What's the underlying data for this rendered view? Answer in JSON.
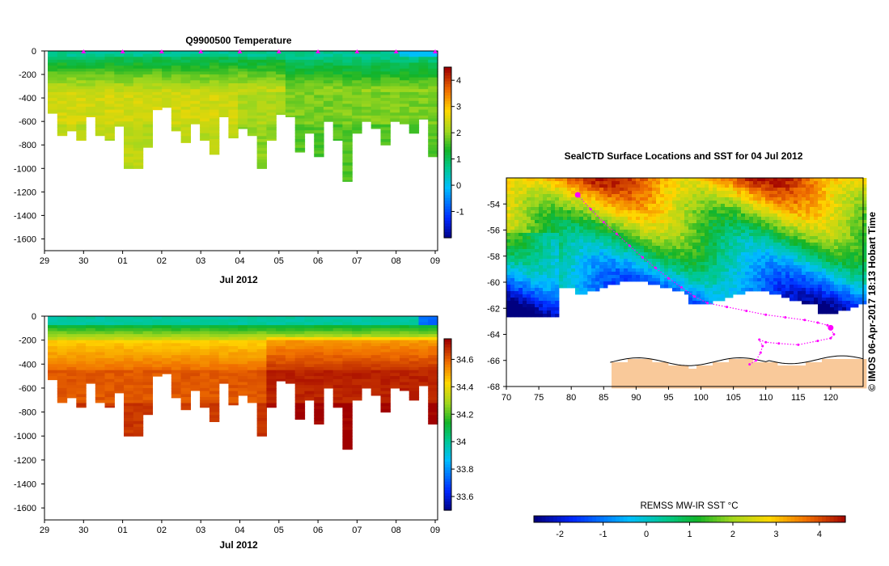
{
  "chart_data": [
    {
      "type": "heatmap",
      "title": "Q9900500  Temperature",
      "xlabel": "Jul 2012",
      "ylabel": "",
      "x_ticks": [
        "29",
        "30",
        "01",
        "02",
        "03",
        "04",
        "05",
        "06",
        "07",
        "08",
        "09"
      ],
      "y_ticks": [
        "0",
        "-200",
        "-400",
        "-600",
        "-800",
        "-1000",
        "-1200",
        "-1400",
        "-1600"
      ],
      "ylim": [
        -1700,
        0
      ],
      "colorbar": {
        "ticks": [
          "4",
          "3",
          "2",
          "1",
          "0",
          "-1"
        ],
        "range": [
          -2,
          4.5
        ]
      },
      "profile_max_depth_m": [
        530,
        720,
        680,
        760,
        560,
        720,
        760,
        640,
        1000,
        1000,
        820,
        500,
        480,
        680,
        780,
        620,
        760,
        880,
        560,
        740,
        660,
        720,
        1000,
        760,
        540,
        560,
        860,
        700,
        900,
        600,
        760,
        1110,
        700,
        600,
        660,
        800,
        600,
        620,
        700,
        580,
        900
      ],
      "surface_markers_at": [
        "30",
        "01",
        "02",
        "03",
        "04",
        "05",
        "06",
        "07",
        "08",
        "09"
      ]
    },
    {
      "type": "heatmap",
      "title": "",
      "xlabel": "Jul 2012",
      "ylabel": "",
      "x_ticks": [
        "29",
        "30",
        "01",
        "02",
        "03",
        "04",
        "05",
        "06",
        "07",
        "08",
        "09"
      ],
      "y_ticks": [
        "0",
        "-200",
        "-400",
        "-600",
        "-800",
        "-1000",
        "-1200",
        "-1400",
        "-1600"
      ],
      "ylim": [
        -1700,
        0
      ],
      "colorbar": {
        "ticks": [
          "34.6",
          "34.4",
          "34.2",
          "34",
          "33.8",
          "33.6"
        ],
        "range": [
          33.5,
          34.75
        ]
      }
    },
    {
      "type": "heatmap",
      "title": "SealCTD Surface Locations and SST for 04 Jul 2012",
      "x_ticks": [
        "70",
        "75",
        "80",
        "85",
        "90",
        "95",
        "100",
        "105",
        "110",
        "115",
        "120"
      ],
      "y_ticks": [
        "-54",
        "-56",
        "-58",
        "-60",
        "-62",
        "-64",
        "-66",
        "-68"
      ],
      "xlim": [
        70,
        125
      ],
      "ylim": [
        -68,
        -52
      ],
      "colorbar": {
        "label": "REMSS MW-IR SST °C",
        "ticks": [
          "-2",
          "-1",
          "0",
          "1",
          "2",
          "3",
          "4"
        ],
        "range": [
          -2.6,
          4.6
        ]
      },
      "track": [
        {
          "lon": 81,
          "lat": -53.3
        },
        {
          "lon": 83,
          "lat": -54.4
        },
        {
          "lon": 85,
          "lat": -55.4
        },
        {
          "lon": 87,
          "lat": -56.3
        },
        {
          "lon": 89,
          "lat": -57.2
        },
        {
          "lon": 91,
          "lat": -58.1
        },
        {
          "lon": 93,
          "lat": -58.9
        },
        {
          "lon": 95,
          "lat": -59.7
        },
        {
          "lon": 97,
          "lat": -60.4
        },
        {
          "lon": 99,
          "lat": -61.1
        },
        {
          "lon": 101,
          "lat": -61.6
        },
        {
          "lon": 104,
          "lat": -61.9
        },
        {
          "lon": 107,
          "lat": -62.2
        },
        {
          "lon": 110,
          "lat": -62.5
        },
        {
          "lon": 113,
          "lat": -62.7
        },
        {
          "lon": 116,
          "lat": -62.9
        },
        {
          "lon": 118,
          "lat": -63.1
        },
        {
          "lon": 119.5,
          "lat": -63.3
        },
        {
          "lon": 120,
          "lat": -63.6
        },
        {
          "lon": 120.5,
          "lat": -64.0
        },
        {
          "lon": 120,
          "lat": -64.3
        },
        {
          "lon": 118,
          "lat": -64.5
        },
        {
          "lon": 115,
          "lat": -64.8
        },
        {
          "lon": 112,
          "lat": -64.7
        },
        {
          "lon": 110,
          "lat": -64.6
        },
        {
          "lon": 109,
          "lat": -64.4
        },
        {
          "lon": 109.5,
          "lat": -64.9
        },
        {
          "lon": 109.2,
          "lat": -65.4
        },
        {
          "lon": 108.5,
          "lat": -66.0
        },
        {
          "lon": 107.5,
          "lat": -66.3
        }
      ],
      "track_highlight": [
        {
          "lon": 81,
          "lat": -53.3
        },
        {
          "lon": 120,
          "lat": -63.5
        }
      ]
    }
  ],
  "watermark": "© IMOS 06-Apr-2017 18:13 Hobart Time"
}
